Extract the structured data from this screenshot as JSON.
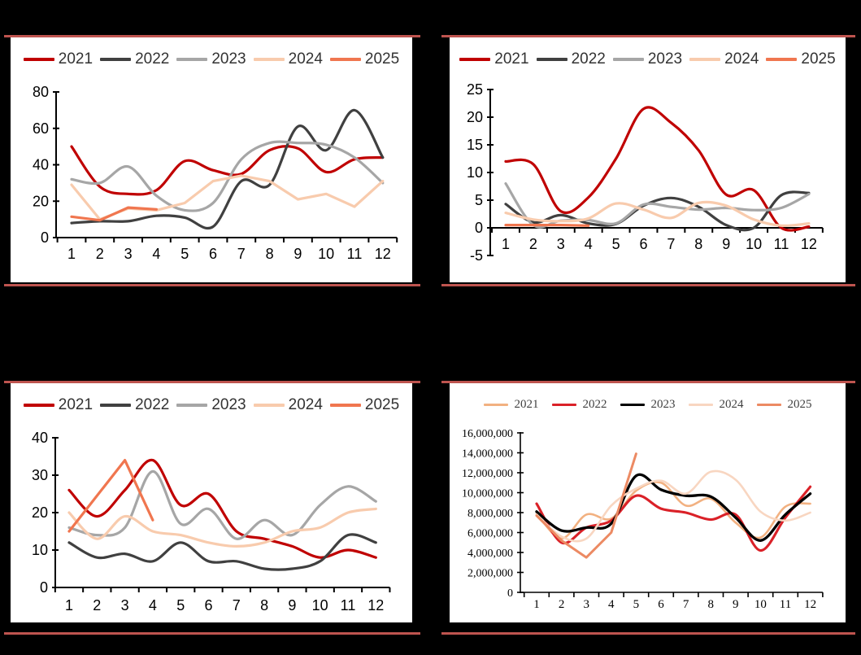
{
  "page": {
    "background_color": "#000000",
    "divider_color": "#BE544F",
    "panel_background": "#FFFFFF"
  },
  "chart_data": [
    {
      "id": "top-left",
      "type": "line",
      "x": [
        1,
        2,
        3,
        4,
        5,
        6,
        7,
        8,
        9,
        10,
        11,
        12
      ],
      "x_tick_labels": [
        "1",
        "2",
        "3",
        "4",
        "5",
        "6",
        "7",
        "8",
        "9",
        "10",
        "11",
        "12"
      ],
      "ylim": [
        0,
        80
      ],
      "y_ticks": [
        0,
        20,
        40,
        60,
        80
      ],
      "y_tick_labels": [
        "0",
        "20",
        "40",
        "60",
        "80"
      ],
      "grid": false,
      "legend_position": "top",
      "legend": [
        "2021",
        "2022",
        "2023",
        "2024",
        "2025"
      ],
      "series": [
        {
          "name": "2021",
          "color": "#C00000",
          "smooth": true,
          "values": [
            50,
            28,
            24,
            26,
            42,
            37,
            35,
            48,
            49,
            36,
            43,
            44
          ]
        },
        {
          "name": "2022",
          "color": "#404040",
          "smooth": true,
          "values": [
            8,
            9,
            9,
            12,
            11,
            6,
            31,
            29,
            61,
            48,
            70,
            44
          ]
        },
        {
          "name": "2023",
          "color": "#A6A6A6",
          "smooth": true,
          "values": [
            32,
            30,
            39,
            23,
            15,
            19,
            43,
            52,
            52,
            51,
            44,
            30
          ]
        },
        {
          "name": "2024",
          "color": "#F8CBAD",
          "smooth": false,
          "values": [
            29,
            10,
            16,
            15,
            19,
            31,
            34,
            31,
            21,
            24,
            17,
            31
          ]
        },
        {
          "name": "2025",
          "color": "#F0764F",
          "smooth": false,
          "values": [
            11.5,
            9.5,
            16.5,
            15.5
          ]
        }
      ]
    },
    {
      "id": "top-right",
      "type": "line",
      "x": [
        1,
        2,
        3,
        4,
        5,
        6,
        7,
        8,
        9,
        10,
        11,
        12
      ],
      "x_tick_labels": [
        "1",
        "2",
        "3",
        "4",
        "5",
        "6",
        "7",
        "8",
        "9",
        "10",
        "11",
        "12"
      ],
      "ylim": [
        -5,
        25
      ],
      "y_ticks": [
        -5,
        0,
        5,
        10,
        15,
        20,
        25
      ],
      "y_tick_labels": [
        "-5",
        "0",
        "5",
        "10",
        "15",
        "20",
        "25"
      ],
      "grid": false,
      "legend_position": "top",
      "legend": [
        "2021",
        "2022",
        "2023",
        "2024",
        "2025"
      ],
      "series": [
        {
          "name": "2021",
          "color": "#C00000",
          "smooth": true,
          "values": [
            12,
            11.5,
            3,
            5.5,
            12.5,
            21.5,
            19,
            14,
            6,
            6.8,
            0,
            0.2
          ]
        },
        {
          "name": "2022",
          "color": "#404040",
          "smooth": true,
          "values": [
            4.3,
            1,
            2.3,
            0.8,
            0.7,
            4,
            5.4,
            3.8,
            0.5,
            0,
            5.9,
            6.3
          ]
        },
        {
          "name": "2023",
          "color": "#A6A6A6",
          "smooth": true,
          "values": [
            8,
            0.5,
            1.3,
            1.4,
            0.8,
            4.2,
            3.8,
            3.3,
            3.6,
            3.2,
            3.6,
            6.1
          ]
        },
        {
          "name": "2024",
          "color": "#F8CBAD",
          "smooth": true,
          "values": [
            2.7,
            1.5,
            1.2,
            1.7,
            4.4,
            3.3,
            1.8,
            4.5,
            4,
            1.5,
            0.4,
            0.8
          ]
        },
        {
          "name": "2025",
          "color": "#F0764F",
          "smooth": false,
          "values": [
            0.5,
            0.5,
            0.5,
            0.4
          ]
        }
      ]
    },
    {
      "id": "bottom-left",
      "type": "line",
      "x": [
        1,
        2,
        3,
        4,
        5,
        6,
        7,
        8,
        9,
        10,
        11,
        12
      ],
      "x_tick_labels": [
        "1",
        "2",
        "3",
        "4",
        "5",
        "6",
        "7",
        "8",
        "9",
        "10",
        "11",
        "12"
      ],
      "ylim": [
        0,
        40
      ],
      "y_ticks": [
        0,
        10,
        20,
        30,
        40
      ],
      "y_tick_labels": [
        "0",
        "10",
        "20",
        "30",
        "40"
      ],
      "grid": false,
      "legend_position": "top",
      "legend": [
        "2021",
        "2022",
        "2023",
        "2024",
        "2025"
      ],
      "series": [
        {
          "name": "2021",
          "color": "#C00000",
          "smooth": true,
          "values": [
            26,
            19,
            26,
            34,
            22,
            25,
            15,
            13,
            11,
            8,
            10,
            8
          ]
        },
        {
          "name": "2022",
          "color": "#404040",
          "smooth": true,
          "values": [
            12,
            8,
            9,
            7,
            12,
            7,
            7,
            5,
            5,
            7,
            14,
            12
          ]
        },
        {
          "name": "2023",
          "color": "#A6A6A6",
          "smooth": true,
          "values": [
            16,
            14,
            16,
            31,
            17,
            21,
            13,
            18,
            14,
            22,
            27,
            23
          ]
        },
        {
          "name": "2024",
          "color": "#F8CBAD",
          "smooth": true,
          "values": [
            20,
            13,
            19,
            15,
            14,
            12,
            11,
            12,
            15,
            16,
            20,
            21
          ]
        },
        {
          "name": "2025",
          "color": "#F0764F",
          "smooth": false,
          "values": [
            15,
            24.5,
            34,
            18
          ]
        }
      ]
    },
    {
      "id": "bottom-right",
      "type": "line",
      "x": [
        1,
        2,
        3,
        4,
        5,
        6,
        7,
        8,
        9,
        10,
        11,
        12
      ],
      "x_tick_labels": [
        "1",
        "2",
        "3",
        "4",
        "5",
        "6",
        "7",
        "8",
        "9",
        "10",
        "11",
        "12"
      ],
      "ylim": [
        0,
        16000000
      ],
      "y_ticks": [
        0,
        2000000,
        4000000,
        6000000,
        8000000,
        10000000,
        12000000,
        14000000,
        16000000
      ],
      "y_tick_labels": [
        "0",
        "2,000,000",
        "4,000,000",
        "6,000,000",
        "8,000,000",
        "10,000,000",
        "12,000,000",
        "14,000,000",
        "16,000,000"
      ],
      "grid": false,
      "legend_position": "top",
      "legend": [
        "2021",
        "2022",
        "2023",
        "2024",
        "2025"
      ],
      "series": [
        {
          "name": "2021",
          "color": "#F2B181",
          "smooth": true,
          "values": [
            7900000,
            5400000,
            7800000,
            7400000,
            10200000,
            11000000,
            8700000,
            9400000,
            7000000,
            5500000,
            8600000,
            8900000
          ]
        },
        {
          "name": "2022",
          "color": "#DA2128",
          "smooth": true,
          "values": [
            8900000,
            5000000,
            6500000,
            7200000,
            9700000,
            8400000,
            8000000,
            7300000,
            7800000,
            4200000,
            7500000,
            10600000
          ]
        },
        {
          "name": "2023",
          "color": "#000000",
          "smooth": true,
          "values": [
            8100000,
            6200000,
            6500000,
            6900000,
            11700000,
            10300000,
            9700000,
            9600000,
            7500000,
            5200000,
            7800000,
            9900000
          ]
        },
        {
          "name": "2024",
          "color": "#F8D6C1",
          "smooth": true,
          "values": [
            7800000,
            5600000,
            5400000,
            8700000,
            10400000,
            11200000,
            9900000,
            12100000,
            11300000,
            8100000,
            7200000,
            8000000
          ]
        },
        {
          "name": "2025",
          "color": "#EC8A63",
          "smooth": false,
          "values": [
            7700000,
            5200000,
            3500000,
            6000000,
            13900000
          ]
        }
      ]
    }
  ]
}
